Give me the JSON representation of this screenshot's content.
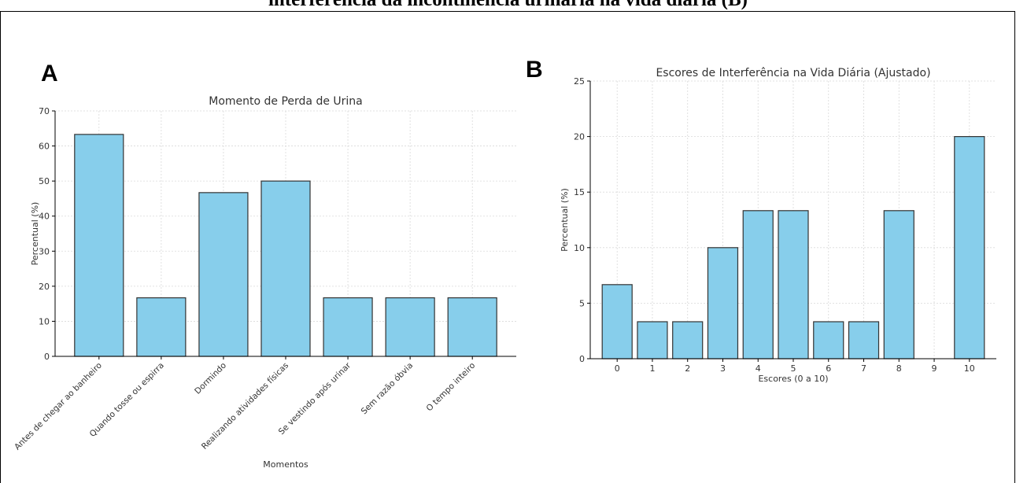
{
  "figure": {
    "top_title": "interferência da incontinência urinária na vida diária (B)"
  },
  "chart_data": [
    {
      "panel_label": "A",
      "type": "bar",
      "title": "Momento de Perda de Urina",
      "xlabel": "Momentos",
      "ylabel": "Percentual (%)",
      "categories": [
        "Antes de chegar ao banheiro",
        "Quando tosse ou espirra",
        "Dormindo",
        "Realizando atividades físicas",
        "Se vestindo após urinar",
        "Sem razão óbvia",
        "O tempo inteiro"
      ],
      "values": [
        63.3,
        16.7,
        46.7,
        50.0,
        16.7,
        16.7,
        16.7
      ],
      "yticks": [
        0,
        10,
        20,
        30,
        40,
        50,
        60,
        70
      ],
      "ylim": [
        0,
        70
      ],
      "grid": true,
      "color": "#87ceeb"
    },
    {
      "panel_label": "B",
      "type": "bar",
      "title": "Escores de Interferência na Vida Diária (Ajustado)",
      "xlabel": "Escores (0 a 10)",
      "ylabel": "Percentual (%)",
      "categories": [
        "0",
        "1",
        "2",
        "3",
        "4",
        "5",
        "6",
        "7",
        "8",
        "9",
        "10"
      ],
      "values": [
        6.67,
        3.33,
        3.33,
        10.0,
        13.33,
        13.33,
        3.33,
        3.33,
        13.33,
        0,
        20.0
      ],
      "yticks": [
        0,
        5,
        10,
        15,
        20,
        25
      ],
      "ylim": [
        0,
        25
      ],
      "grid": true,
      "color": "#87ceeb"
    }
  ]
}
